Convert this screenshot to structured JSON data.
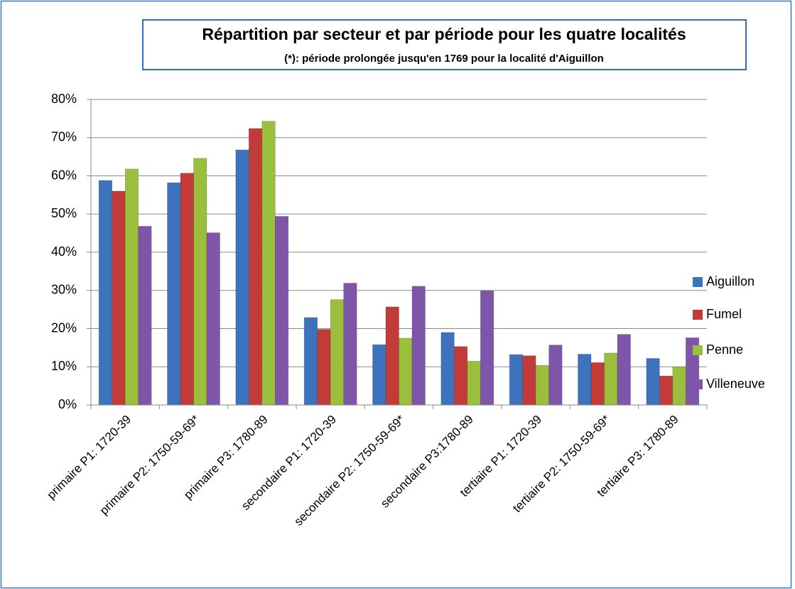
{
  "chart_data": {
    "type": "bar",
    "title": "Répartition par secteur et par période pour les quatre localités",
    "subtitle": "(*): période prolongée jusqu'en 1769 pour la localité d'Aiguillon",
    "categories": [
      "primaire P1: 1720-39",
      "primaire P2: 1750-59-69*",
      "primaire P3: 1780-89",
      "secondaire P1: 1720-39",
      "secondaire P2: 1750-59-69*",
      "secondaire P3:1780-89",
      "tertiaire P1: 1720-39",
      "tertiaire P2: 1750-59-69*",
      "tertiaire P3: 1780-89"
    ],
    "series": [
      {
        "name": "Aiguillon",
        "color": "#3d72bd",
        "values": [
          58.8,
          58.2,
          66.8,
          22.9,
          15.8,
          19,
          13.2,
          13.3,
          12.2
        ]
      },
      {
        "name": "Fumel",
        "color": "#c23b38",
        "values": [
          56,
          60.7,
          72.4,
          19.8,
          25.7,
          15.3,
          12.9,
          11.1,
          7.6
        ]
      },
      {
        "name": "Penne",
        "color": "#9bbf3c",
        "values": [
          61.8,
          64.6,
          74.3,
          27.6,
          17.5,
          11.5,
          10.4,
          13.6,
          10
        ]
      },
      {
        "name": "Villeneuve",
        "color": "#7e55a8",
        "values": [
          46.8,
          45.1,
          49.4,
          31.9,
          31.1,
          29.9,
          15.7,
          18.5,
          17.6
        ]
      }
    ],
    "ylim": [
      0,
      80
    ],
    "yticks": [
      {
        "value": 0,
        "label": "0%"
      },
      {
        "value": 10,
        "label": "10%"
      },
      {
        "value": 20,
        "label": "20%"
      },
      {
        "value": 30,
        "label": "30%"
      },
      {
        "value": 40,
        "label": "40%"
      },
      {
        "value": 50,
        "label": "50%"
      },
      {
        "value": 60,
        "label": "60%"
      },
      {
        "value": 70,
        "label": "70%"
      },
      {
        "value": 80,
        "label": "80%"
      }
    ],
    "grid": true,
    "legend": "right"
  }
}
